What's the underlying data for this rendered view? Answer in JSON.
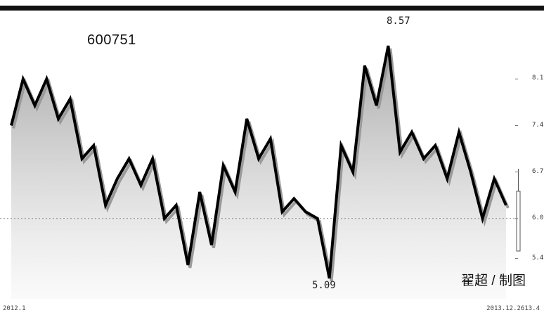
{
  "chart_data": {
    "type": "line",
    "title": "",
    "series": [
      {
        "values": [
          7.4,
          8.1,
          7.7,
          8.1,
          7.5,
          7.8,
          6.9,
          7.1,
          6.2,
          6.6,
          6.9,
          6.5,
          6.9,
          6.0,
          6.2,
          5.3,
          6.4,
          5.6,
          6.8,
          6.4,
          7.5,
          6.9,
          7.2,
          6.1,
          6.3,
          6.1,
          6.0,
          5.1,
          7.1,
          6.7,
          8.3,
          7.7,
          8.6,
          7.0,
          7.3,
          6.9,
          7.1,
          6.6,
          7.3,
          6.7,
          6.0,
          6.6,
          6.2
        ]
      }
    ],
    "ytick_labels": [
      "8.1",
      "7.4",
      "6.7",
      "6.0",
      "5.4"
    ],
    "ytick_values": [
      8.1,
      7.4,
      6.7,
      6.0,
      5.4
    ],
    "ylim": [
      4.95,
      8.95
    ],
    "high": {
      "value": 8.57,
      "label": "8.57"
    },
    "low": {
      "value": 5.09,
      "label": "5.09"
    },
    "reference_line": 6.0,
    "date_start": "2012.1",
    "date_end": "2013.12.2613.4",
    "grid": false
  },
  "stock_code": "600751",
  "credit": "翟超 / 制图"
}
